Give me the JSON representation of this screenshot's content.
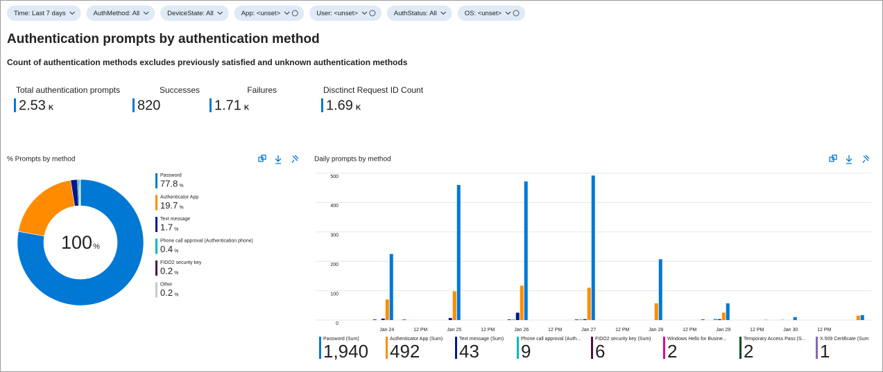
{
  "filters": [
    {
      "label": "Time: Last 7 days"
    },
    {
      "label": "AuthMethod: All"
    },
    {
      "label": "DeviceState: All"
    },
    {
      "label": "App: <unset>",
      "info": true
    },
    {
      "label": "User: <unset>",
      "info": true
    },
    {
      "label": "AuthStatus: All"
    },
    {
      "label": "OS: <unset>",
      "info": true
    }
  ],
  "title": "Authentication prompts by authentication method",
  "subtitle": "Count of authentication methods excludes previously satisfied and unknown authentication methods",
  "kpis": [
    {
      "label": "Total authentication prompts",
      "value": 2.53,
      "unit": "K"
    },
    {
      "label": "Successes",
      "value": 820
    },
    {
      "label": "Failures",
      "value": 1.71,
      "unit": "K"
    },
    {
      "label": "Disctinct Request ID Count",
      "value": 1.69,
      "unit": "K"
    }
  ],
  "chart_data": [
    {
      "type": "pie",
      "title": "% Prompts by method",
      "categories": [
        "Password",
        "Authenticator App",
        "Text message",
        "Phone call approval (Authentication phone)",
        "FIDO2 security key",
        "Other"
      ],
      "values": [
        77.8,
        19.7,
        1.7,
        0.4,
        0.2,
        0.2
      ],
      "colors": [
        "#0078d4",
        "#ff8c00",
        "#00188f",
        "#00b7c3",
        "#4b0f45",
        "#c8c8c8"
      ],
      "unit": "%",
      "total": 100
    },
    {
      "type": "bar",
      "title": "Daily prompts by method",
      "categories": [
        null,
        "Jan 24",
        "12 PM",
        "Jan 25",
        "12 PM",
        "Jan 26",
        "12 PM",
        "Jan 27",
        "12 PM",
        "Jan 28",
        "12 PM",
        "Jan 29",
        "12 PM",
        "Jan 30",
        "12 PM",
        null
      ],
      "ylim": [
        0,
        500
      ],
      "yticks": [
        0,
        100,
        200,
        300,
        400,
        500
      ],
      "grid": true,
      "series": [
        {
          "name": "Password (Sum)",
          "color": "#0078d4",
          "values": [
            0,
            225,
            0,
            460,
            0,
            472,
            0,
            492,
            0,
            207,
            0,
            57,
            0,
            10,
            0,
            17
          ],
          "total": 1940,
          "total_label": "1,940"
        },
        {
          "name": "Authenticator App (Sum)",
          "color": "#ff8c00",
          "values": [
            0,
            70,
            0,
            98,
            0,
            117,
            0,
            110,
            0,
            57,
            0,
            25,
            0,
            0,
            0,
            15
          ],
          "total": 492
        },
        {
          "name": "Text message (Sum)",
          "color": "#00188f",
          "values": [
            0,
            5,
            0,
            7,
            0,
            25,
            0,
            3,
            0,
            0,
            0,
            3,
            0,
            0,
            0,
            0
          ],
          "total": 43
        },
        {
          "name": "Phone call approval (Auth...",
          "color": "#00b7c3",
          "values": [
            0,
            0,
            0,
            0,
            0,
            2,
            0,
            2,
            0,
            0,
            0,
            4,
            0,
            1,
            0,
            0
          ],
          "total": 9
        },
        {
          "name": "FIDO2 security key (Sum)",
          "color": "#4b0f45",
          "values": [
            0,
            2,
            0,
            0,
            0,
            2,
            0,
            2,
            0,
            0,
            0,
            0,
            0,
            0,
            0,
            0
          ],
          "total": 6
        },
        {
          "name": "Windows Hello for Busine...",
          "color": "#e3008c",
          "values": [
            0,
            0,
            2,
            0,
            0,
            0,
            0,
            0,
            0,
            0,
            0,
            0,
            0,
            0,
            0,
            0
          ],
          "total": 2
        },
        {
          "name": "Temporary Access Pass (S...",
          "color": "#004b1c",
          "values": [
            0,
            0,
            0,
            0,
            0,
            0,
            0,
            0,
            0,
            0,
            0,
            2,
            0,
            0,
            0,
            0
          ],
          "total": 2
        },
        {
          "name": "X.509 Certificate (Sum",
          "color": "#8764b8",
          "values": [
            0,
            0,
            0,
            0,
            0,
            0,
            0,
            0,
            0,
            0,
            0,
            0,
            0,
            1,
            0,
            0
          ],
          "total": 1
        }
      ]
    }
  ]
}
